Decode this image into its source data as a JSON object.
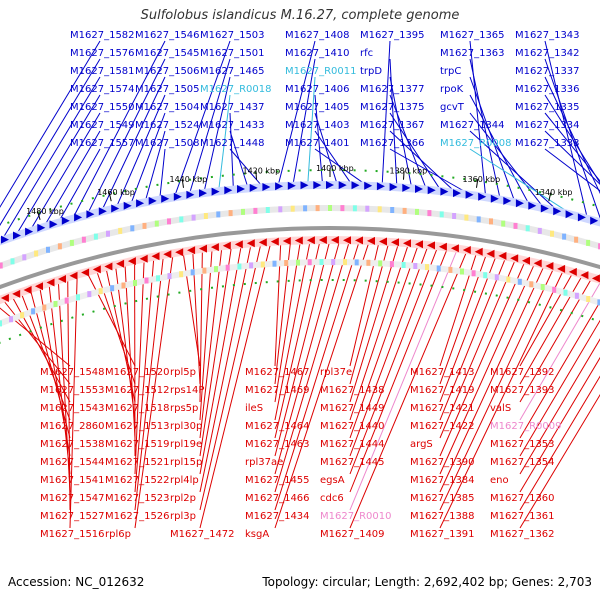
{
  "title": "Sulfolobus islandicus M.16.27, complete genome",
  "footer": {
    "accession": "Accession: NC_012632",
    "summary": "Topology: circular; Length: 2,692,402 bp; Genes: 2,703"
  },
  "colors": {
    "forward": "#0000cc",
    "reverse": "#dd0000",
    "rna_forward": "#33bbdd",
    "rna_reverse": "#ee88cc",
    "backbone": "#999999",
    "gc_marker": "#22aa22"
  },
  "kbp_ticks": [
    "1500 kbp",
    "1480 kbp",
    "1460 kbp",
    "1440 kbp",
    "1420 kbp",
    "1400 kbp",
    "1380 kbp",
    "1360 kbp",
    "1340 kbp",
    "1320 kbp",
    "1300 kbp"
  ],
  "top_labels": [
    "M1627_1582",
    "M1627_1576",
    "M1627_1581",
    "M1627_1574",
    "M1627_1550",
    "M1627_1549",
    "M1627_1557",
    "M1627_1546",
    "M1627_1545",
    "M1627_1506",
    "M1627_1505",
    "M1627_1504",
    "M1627_1524",
    "M1627_1508",
    "M1627_1503",
    "M1627_1501",
    "M1627_1465",
    "M1627_R0018",
    "M1627_1437",
    "M1627_1433",
    "M1627_1448",
    "M1627_1408",
    "M1627_1410",
    "M1627_R0011",
    "M1627_1406",
    "M1627_1405",
    "M1627_1403",
    "M1627_1401",
    "M1627_1395",
    "rfc",
    "trpD",
    "M1627_1377",
    "M1627_1375",
    "M1627_1367",
    "M1627_1366",
    "M1627_1365",
    "M1627_1363",
    "trpC",
    "rpoK",
    "gcvT",
    "M1627_1344",
    "M1627_R0008",
    "M1627_1343",
    "M1627_1342",
    "M1627_1337",
    "M1627_1336",
    "M1627_1335",
    "M1627_1334",
    "M1627_1333"
  ],
  "bottom_labels": [
    "M1627_1548",
    "M1627_1553",
    "M1627_1543",
    "M1627_2860",
    "M1627_1538",
    "M1627_1544",
    "M1627_1541",
    "M1627_1547",
    "M1627_1527",
    "M1627_1516",
    "M1627_1520",
    "M1627_1512",
    "M1627_1518",
    "M1627_1513",
    "M1627_1519",
    "M1627_1521",
    "M1627_1522",
    "M1627_1523",
    "M1627_1526",
    "rpl6p",
    "rpl5p",
    "rps14P",
    "rps5p",
    "rpl30p",
    "rpl19e",
    "rpl15p",
    "rpl4lp",
    "rpl2p",
    "rpl3p",
    "M1627_1472",
    "M1627_1467",
    "M1627_1469",
    "ileS",
    "M1627_1464",
    "M1627_1463",
    "rpl37ae",
    "M1627_1455",
    "M1627_1466",
    "M1627_1434",
    "ksgA",
    "rpl37e",
    "M1627_1438",
    "M1627_1449",
    "M1627_1440",
    "M1627_1444",
    "M1627_1445",
    "egsA",
    "cdc6",
    "M1627_R0010",
    "M1627_1409",
    "M1627_1413",
    "M1627_1419",
    "M1627_1421",
    "M1627_1422",
    "argS",
    "M1627_1390",
    "M1627_1384",
    "M1627_1385",
    "M1627_1388",
    "M1627_1391",
    "M1627_1392",
    "M1627_1393",
    "valS",
    "M1627_R0009",
    "M1627_1353",
    "M1627_1354",
    "eno",
    "M1627_1360",
    "M1627_1361",
    "M1627_1362"
  ]
}
